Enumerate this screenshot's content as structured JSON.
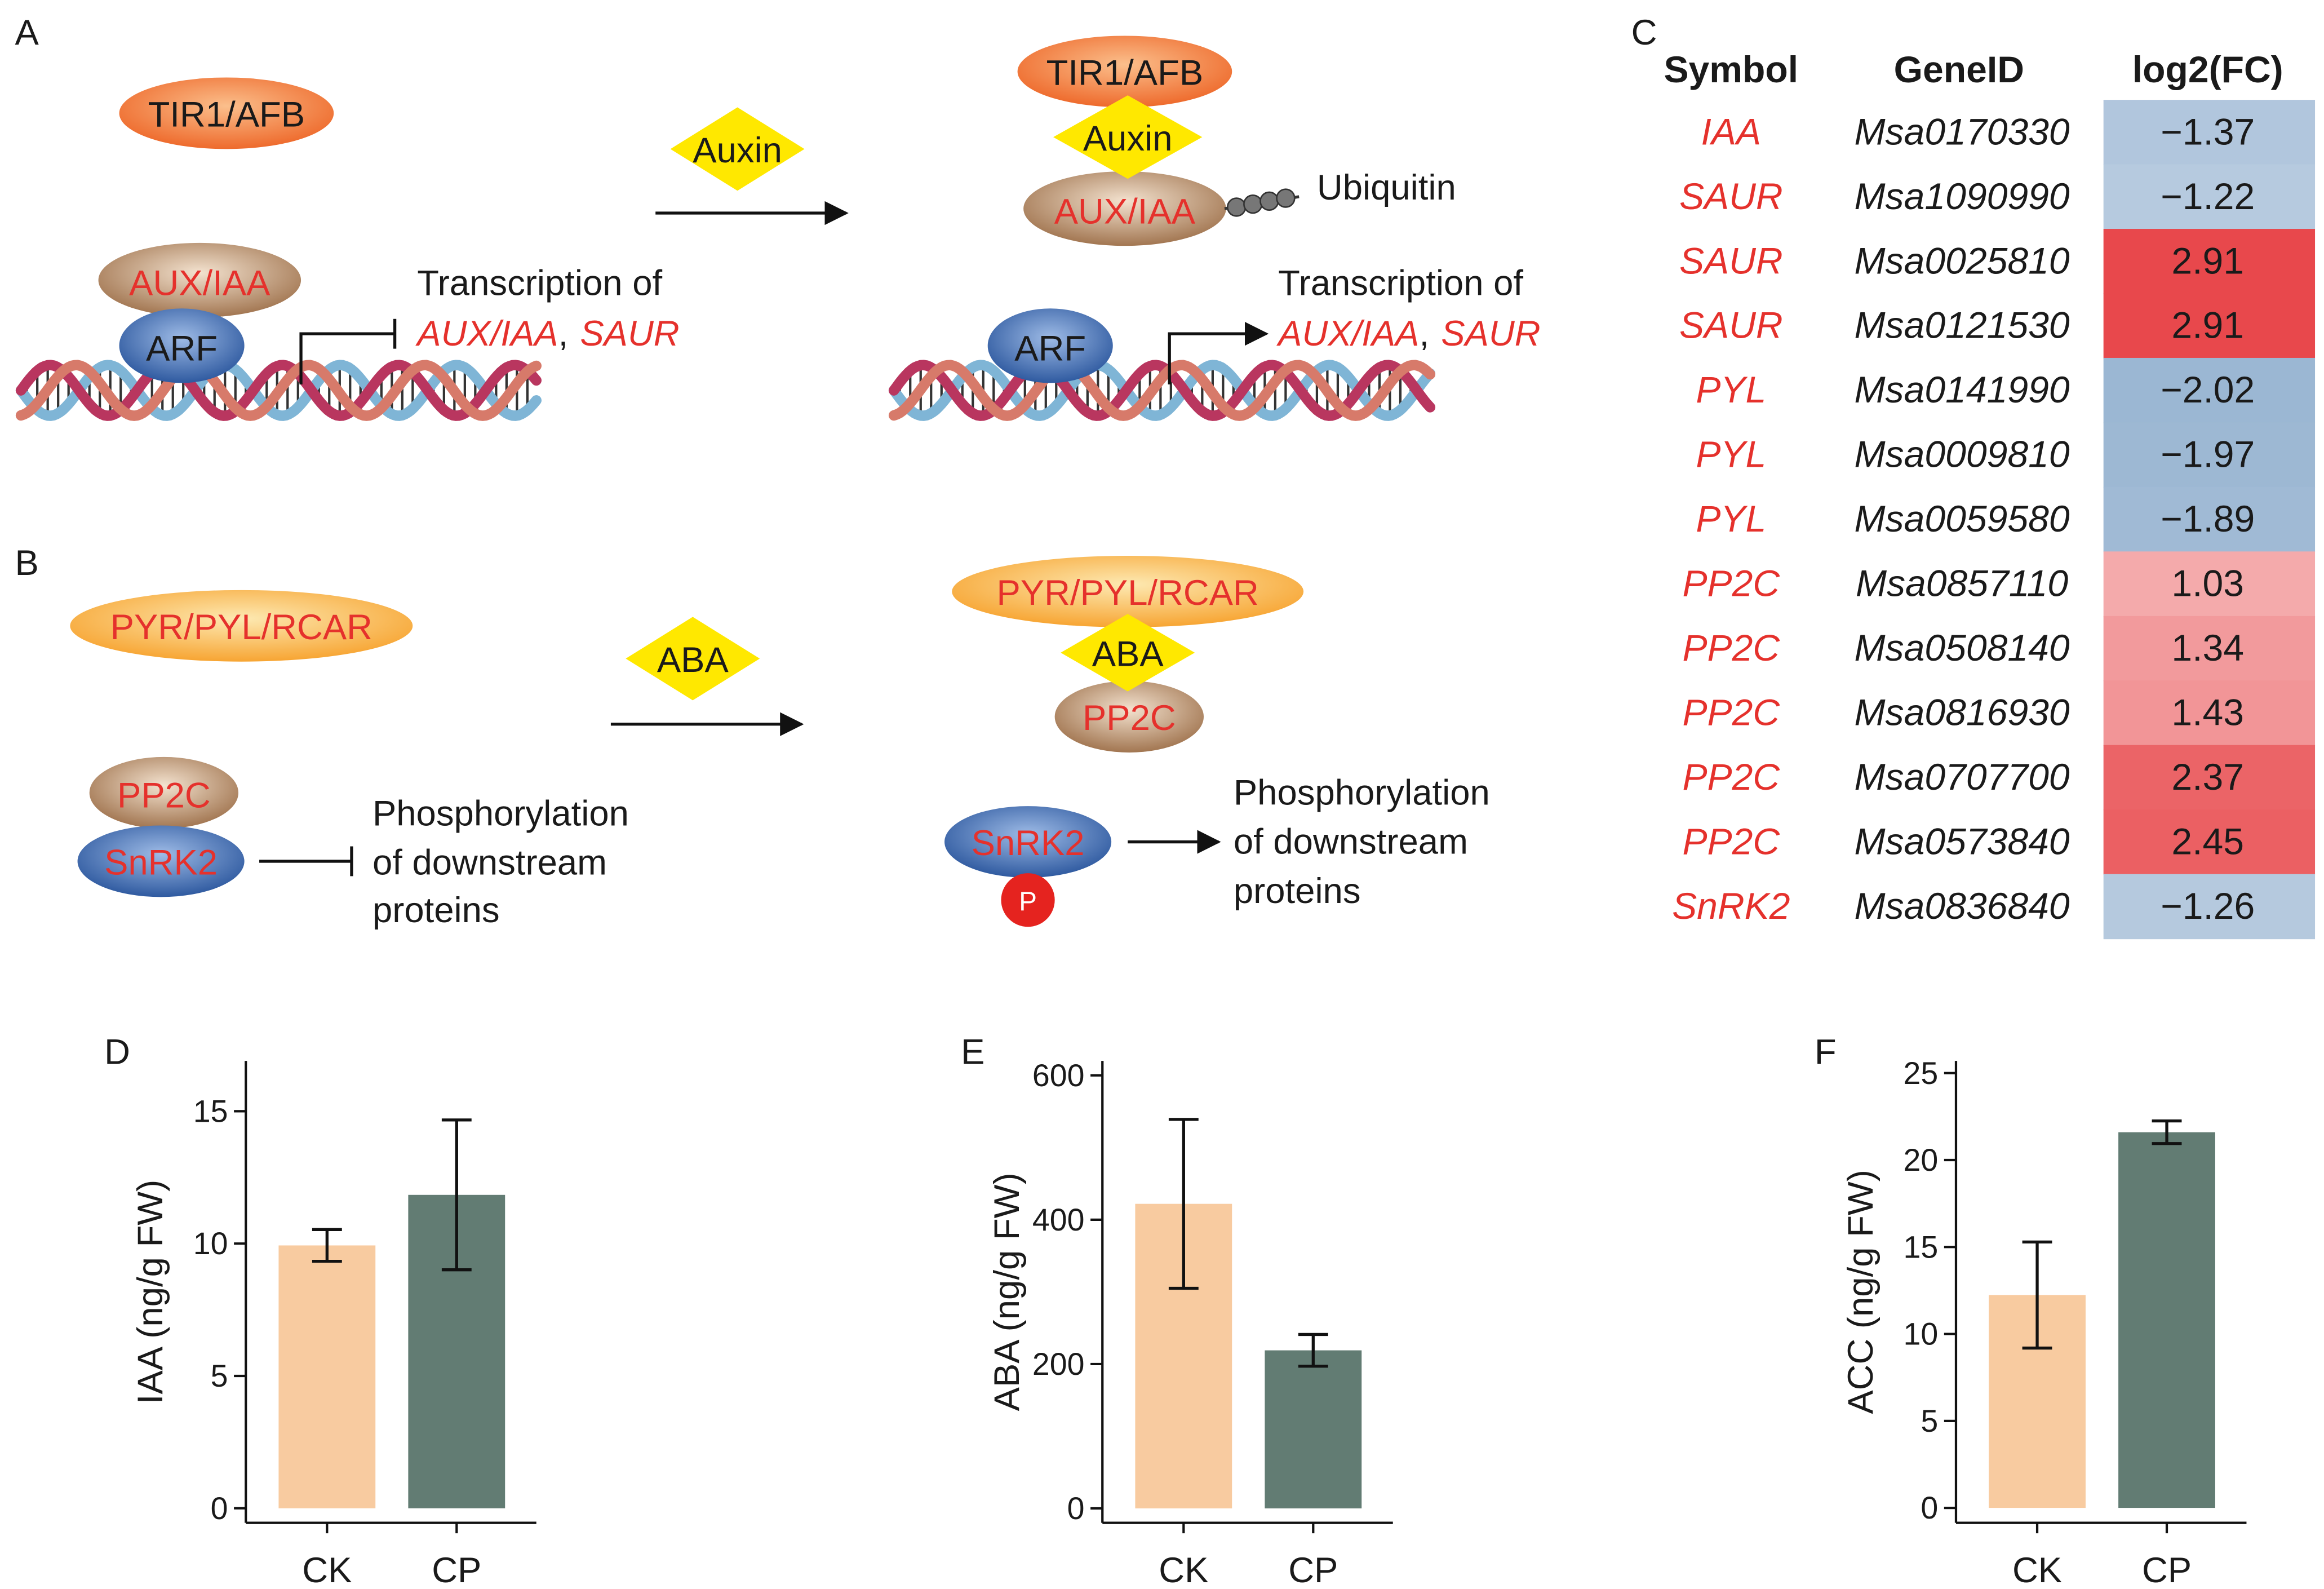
{
  "diagram_a": {
    "label": "A",
    "before": {
      "receptor": "TIR1/AFB",
      "repressor": "AUX/IAA",
      "factor": "ARF",
      "output": {
        "line1": "Transcription of",
        "gene1": "AUX/IAA",
        "separator": ",",
        "gene2": "SAUR"
      }
    },
    "signal": "Auxin",
    "after": {
      "receptor": "TIR1/AFB",
      "signal": "Auxin",
      "repressor": "AUX/IAA",
      "tag": "Ubiquitin",
      "factor": "ARF",
      "output": {
        "line1": "Transcription of",
        "gene1": "AUX/IAA",
        "separator": ",",
        "gene2": "SAUR"
      }
    }
  },
  "diagram_b": {
    "label": "B",
    "before": {
      "receptor": "PYR/PYL/RCAR",
      "phosphatase": "PP2C",
      "kinase": "SnRK2",
      "output": [
        "Phosphorylation",
        "of downstream",
        "proteins"
      ]
    },
    "signal": "ABA",
    "after": {
      "receptor": "PYR/PYL/RCAR",
      "signal": "ABA",
      "phosphatase": "PP2C",
      "kinase": "SnRK2",
      "phospho": "P",
      "output": [
        "Phosphorylation",
        "of downstream",
        "proteins"
      ]
    }
  },
  "table": {
    "label": "C",
    "columns": [
      "Symbol",
      "GeneID",
      "log2(FC)"
    ],
    "rows": [
      {
        "symbol": "IAA",
        "gene_id": "Msa0170330",
        "log2fc": -1.37,
        "log2fc_label": "−1.37"
      },
      {
        "symbol": "SAUR",
        "gene_id": "Msa1090990",
        "log2fc": -1.22,
        "log2fc_label": "−1.22"
      },
      {
        "symbol": "SAUR",
        "gene_id": "Msa0025810",
        "log2fc": 2.91,
        "log2fc_label": "2.91"
      },
      {
        "symbol": "SAUR",
        "gene_id": "Msa0121530",
        "log2fc": 2.91,
        "log2fc_label": "2.91"
      },
      {
        "symbol": "PYL",
        "gene_id": "Msa0141990",
        "log2fc": -2.02,
        "log2fc_label": "−2.02"
      },
      {
        "symbol": "PYL",
        "gene_id": "Msa0009810",
        "log2fc": -1.97,
        "log2fc_label": "−1.97"
      },
      {
        "symbol": "PYL",
        "gene_id": "Msa0059580",
        "log2fc": -1.89,
        "log2fc_label": "−1.89"
      },
      {
        "symbol": "PP2C",
        "gene_id": "Msa0857110",
        "log2fc": 1.03,
        "log2fc_label": "1.03"
      },
      {
        "symbol": "PP2C",
        "gene_id": "Msa0508140",
        "log2fc": 1.34,
        "log2fc_label": "1.34"
      },
      {
        "symbol": "PP2C",
        "gene_id": "Msa0816930",
        "log2fc": 1.43,
        "log2fc_label": "1.43"
      },
      {
        "symbol": "PP2C",
        "gene_id": "Msa0707700",
        "log2fc": 2.37,
        "log2fc_label": "2.37"
      },
      {
        "symbol": "PP2C",
        "gene_id": "Msa0573840",
        "log2fc": 2.45,
        "log2fc_label": "2.45"
      },
      {
        "symbol": "SnRK2",
        "gene_id": "Msa0836840",
        "log2fc": -1.26,
        "log2fc_label": "−1.26"
      }
    ]
  },
  "chart_data": [
    {
      "type": "bar",
      "label": "D",
      "ylabel": "IAA (ng/g FW)",
      "categories": [
        "CK",
        "CP"
      ],
      "values": [
        9.93,
        11.84
      ],
      "errors": [
        0.6,
        2.83
      ],
      "colors": [
        "#f8cba0",
        "#627c73"
      ],
      "ylim": [
        -0.55,
        16.9
      ],
      "yticks": [
        0,
        5,
        10,
        15
      ]
    },
    {
      "type": "bar",
      "label": "E",
      "ylabel": "ABA (ng/g FW)",
      "categories": [
        "CK",
        "CP"
      ],
      "values": [
        422,
        219
      ],
      "errors": [
        117,
        22
      ],
      "colors": [
        "#f8cba0",
        "#627c73"
      ],
      "ylim": [
        -20,
        620
      ],
      "yticks": [
        0,
        200,
        400,
        600
      ]
    },
    {
      "type": "bar",
      "label": "F",
      "ylabel": "ACC (ng/g FW)",
      "categories": [
        "CK",
        "CP"
      ],
      "values": [
        12.24,
        21.6
      ],
      "errors": [
        3.05,
        0.65
      ],
      "colors": [
        "#f8cba0",
        "#627c73"
      ],
      "ylim": [
        -0.86,
        25.7
      ],
      "yticks": [
        0,
        5,
        10,
        15,
        20,
        25
      ]
    }
  ]
}
